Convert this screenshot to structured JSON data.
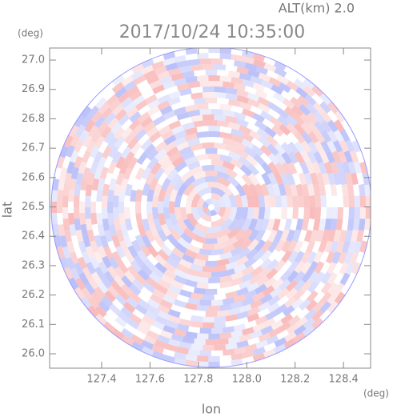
{
  "chart_data": {
    "type": "radar-ppi",
    "title": "2017/10/24 10:35:00",
    "subtitle": "ALT(km) 2.0",
    "x_label": "lon",
    "y_label": "lat",
    "x_unit": "(deg)",
    "y_unit": "(deg)",
    "xlim": [
      127.185,
      128.512
    ],
    "ylim": [
      25.951,
      27.041
    ],
    "xticks": [
      127.4,
      127.6,
      127.8,
      {
        "value": 128,
        "label": "128.0"
      },
      128.2,
      128.4
    ],
    "yticks": [
      {
        "value": 26,
        "label": "26.0"
      },
      26.1,
      26.2,
      26.3,
      26.4,
      26.5,
      26.6,
      26.7,
      26.8,
      26.9,
      {
        "value": 27,
        "label": "27.0"
      }
    ]
  }
}
